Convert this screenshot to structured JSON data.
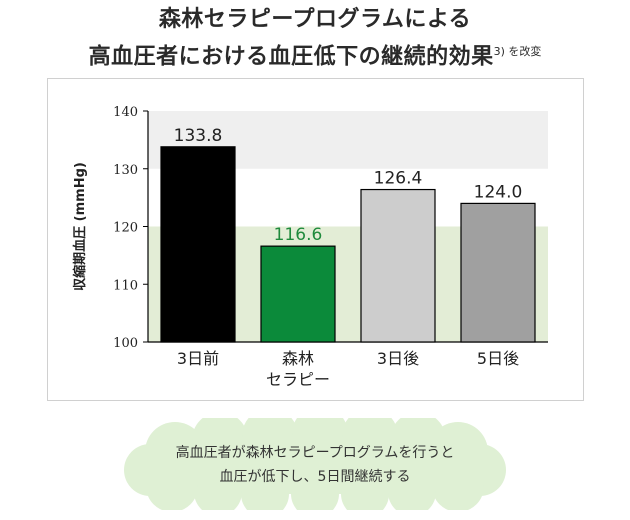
{
  "title": {
    "line1": "森林セラピープログラムによる",
    "line2": "高血圧者における血圧低下の継続的効果",
    "note": "3) を改変"
  },
  "chart_data": {
    "type": "bar",
    "categories": [
      "3日前",
      "森林\nセラピー",
      "3日後",
      "5日後"
    ],
    "values": [
      133.8,
      116.6,
      126.4,
      124.0
    ],
    "value_labels": [
      "133.8",
      "116.6",
      "126.4",
      "124.0"
    ],
    "bar_colors": [
      "#000000",
      "#0b8a3a",
      "#cdcdcd",
      "#a0a0a0"
    ],
    "value_label_colors": [
      "#222222",
      "#1f8a3c",
      "#222222",
      "#222222"
    ],
    "ylabel": "収縮期血圧 (mmHg)",
    "ylim": [
      100,
      140
    ],
    "yticks": [
      100,
      110,
      120,
      130,
      140
    ],
    "bands": [
      {
        "from": 130,
        "to": 140,
        "color": "#efefef"
      },
      {
        "from": 100,
        "to": 120,
        "color": "#e3edd6"
      }
    ],
    "grid": false,
    "legend": "none"
  },
  "callout": {
    "line1": "高血圧者が森林セラピープログラムを行うと",
    "line2": "血圧が低下し、5日間継続する",
    "background": "#dff0d4"
  }
}
